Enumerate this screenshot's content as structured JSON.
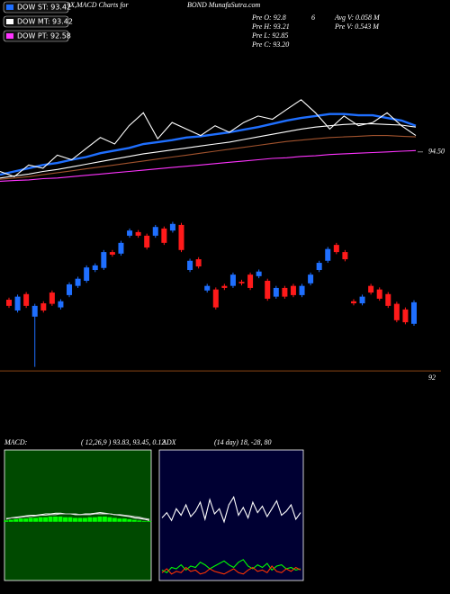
{
  "header": {
    "title": "Price,Volume,EMA,ADX,MACD Charts for",
    "site": "BOND MunafaSutra.com"
  },
  "info": [
    "Pre O: 92.8",
    "Pre H: 93.21",
    "Pre L: 92.85",
    "Pre C: 93.20",
    "6",
    "Avg V: 0.058 M",
    "Pre V: 0.543 M"
  ],
  "chart_data": [
    {
      "type": "line",
      "ylim": [
        94,
        96
      ],
      "yticks": [
        {
          "value": 94.5,
          "label": "94.50"
        }
      ],
      "series": [
        {
          "name": "DOW ST: 93.42",
          "color": "#1f6fff",
          "values": [
            94.15,
            94.2,
            94.25,
            94.3,
            94.33,
            94.38,
            94.42,
            94.48,
            94.52,
            94.56,
            94.62,
            94.65,
            94.68,
            94.72,
            94.74,
            94.77,
            94.8,
            94.84,
            94.88,
            94.93,
            94.98,
            95.02,
            95.05,
            95.08,
            95.08,
            95.06,
            95.06,
            95.02,
            94.98,
            94.9
          ]
        },
        {
          "name": "DOW MT: 93.42",
          "color": "#ffffff",
          "values": [
            94.1,
            94.13,
            94.16,
            94.2,
            94.23,
            94.27,
            94.31,
            94.35,
            94.39,
            94.43,
            94.47,
            94.5,
            94.53,
            94.56,
            94.59,
            94.62,
            94.65,
            94.69,
            94.73,
            94.77,
            94.81,
            94.85,
            94.88,
            94.9,
            94.92,
            94.93,
            94.93,
            94.92,
            94.91,
            94.88
          ]
        },
        {
          "name": "DOW PT: 92.58",
          "color": "#ff33ff",
          "values": [
            94.05,
            94.06,
            94.07,
            94.09,
            94.1,
            94.12,
            94.14,
            94.16,
            94.18,
            94.2,
            94.22,
            94.24,
            94.26,
            94.28,
            94.3,
            94.32,
            94.34,
            94.36,
            94.38,
            94.4,
            94.41,
            94.43,
            94.44,
            94.46,
            94.47,
            94.48,
            94.49,
            94.5,
            94.51,
            94.52
          ]
        },
        {
          "color": "#a0522d",
          "values": [
            94.08,
            94.1,
            94.12,
            94.15,
            94.18,
            94.21,
            94.24,
            94.27,
            94.3,
            94.33,
            94.36,
            94.39,
            94.42,
            94.45,
            94.48,
            94.51,
            94.54,
            94.57,
            94.6,
            94.63,
            94.66,
            94.68,
            94.7,
            94.72,
            94.73,
            94.74,
            94.75,
            94.75,
            94.74,
            94.73
          ]
        },
        {
          "color": "#ffffff",
          "values": [
            94.2,
            94.12,
            94.3,
            94.25,
            94.45,
            94.38,
            94.55,
            94.72,
            94.62,
            94.9,
            95.1,
            94.7,
            94.95,
            94.85,
            94.75,
            94.9,
            94.8,
            94.95,
            95.05,
            95.0,
            95.15,
            95.3,
            95.1,
            94.85,
            95.05,
            94.9,
            94.95,
            95.1,
            94.9,
            94.75
          ]
        }
      ]
    },
    {
      "type": "candlestick",
      "ylim": [
        91.95,
        95.2
      ],
      "yticks": [
        92
      ],
      "up_color": "#1f6fff",
      "down_color": "#ff1a1a",
      "open": [
        93.39,
        93.18,
        93.5,
        93.06,
        93.32,
        93.53,
        93.24,
        93.48,
        93.66,
        93.76,
        93.97,
        94.01,
        94.32,
        94.29,
        94.64,
        94.71,
        94.64,
        94.64,
        94.78,
        94.74,
        94.85,
        93.97,
        94.18,
        93.57,
        93.59,
        93.66,
        93.66,
        93.74,
        93.88,
        93.85,
        93.76,
        93.45,
        93.62,
        93.66,
        93.48,
        93.71,
        93.97,
        94.15,
        94.46,
        94.32,
        93.36,
        93.32,
        93.66,
        93.59,
        93.5,
        93.31,
        93.2,
        92.92
      ],
      "close": [
        93.27,
        93.45,
        93.27,
        93.27,
        93.18,
        93.31,
        93.36,
        93.69,
        93.8,
        94.02,
        94.06,
        94.32,
        94.27,
        94.5,
        94.74,
        94.64,
        94.41,
        94.81,
        94.5,
        94.87,
        94.36,
        94.15,
        94.04,
        93.66,
        93.24,
        93.62,
        93.88,
        93.71,
        93.62,
        93.94,
        93.41,
        93.62,
        93.45,
        93.48,
        93.66,
        93.88,
        94.11,
        94.38,
        94.32,
        94.18,
        93.32,
        93.45,
        93.53,
        93.41,
        93.27,
        92.99,
        92.95,
        93.34
      ],
      "high": [
        93.43,
        93.49,
        93.54,
        93.31,
        93.36,
        93.57,
        93.4,
        93.73,
        93.84,
        94.06,
        94.1,
        94.36,
        94.36,
        94.54,
        94.78,
        94.75,
        94.68,
        94.85,
        94.82,
        94.91,
        94.89,
        94.19,
        94.22,
        93.7,
        93.63,
        93.7,
        93.92,
        93.78,
        93.92,
        93.98,
        93.8,
        93.66,
        93.66,
        93.7,
        93.7,
        93.92,
        94.15,
        94.42,
        94.5,
        94.36,
        93.4,
        93.49,
        93.7,
        93.63,
        93.54,
        93.35,
        93.24,
        93.38
      ],
      "low": [
        93.23,
        93.14,
        93.23,
        92.08,
        93.14,
        93.27,
        93.2,
        93.44,
        93.62,
        93.72,
        93.93,
        93.97,
        94.23,
        94.25,
        94.6,
        94.6,
        94.37,
        94.6,
        94.46,
        94.7,
        94.32,
        93.93,
        94.0,
        93.53,
        93.2,
        93.58,
        93.62,
        93.67,
        93.58,
        93.81,
        93.37,
        93.41,
        93.41,
        93.44,
        93.44,
        93.67,
        93.93,
        94.11,
        94.28,
        94.14,
        93.28,
        93.28,
        93.49,
        93.37,
        93.23,
        92.95,
        92.91,
        92.88
      ]
    },
    {
      "type": "line",
      "title": "MACD:",
      "subtitle": "( 12,26,9 ) 93.83, 93.45, 0.12",
      "ylim": [
        -0.9,
        1.1
      ],
      "series": [
        {
          "color": "#00ff00",
          "type": "bar",
          "values": [
            0.02,
            0.03,
            0.04,
            0.05,
            0.05,
            0.06,
            0.06,
            0.07,
            0.07,
            0.08,
            0.08,
            0.08,
            0.07,
            0.07,
            0.06,
            0.06,
            0.06,
            0.07,
            0.07,
            0.08,
            0.08,
            0.07,
            0.06,
            0.05,
            0.05,
            0.04,
            0.03,
            0.02,
            0.01,
            0.01
          ]
        },
        {
          "color": "#ffffff",
          "values": [
            0.04,
            0.06,
            0.07,
            0.08,
            0.09,
            0.1,
            0.1,
            0.11,
            0.12,
            0.12,
            0.13,
            0.13,
            0.12,
            0.12,
            0.11,
            0.11,
            0.12,
            0.12,
            0.13,
            0.14,
            0.13,
            0.12,
            0.11,
            0.1,
            0.09,
            0.08,
            0.06,
            0.05,
            0.04,
            0.02
          ]
        },
        {
          "color": "#cccccc",
          "values": [
            0.05,
            0.06,
            0.06,
            0.07,
            0.08,
            0.08,
            0.09,
            0.1,
            0.1,
            0.11,
            0.11,
            0.12,
            0.12,
            0.12,
            0.12,
            0.11,
            0.11,
            0.11,
            0.12,
            0.12,
            0.12,
            0.12,
            0.11,
            0.11,
            0.1,
            0.09,
            0.08,
            0.07,
            0.05,
            0.04
          ]
        }
      ]
    },
    {
      "type": "line",
      "title": "ADX",
      "subtitle": "(14 day) 18, -28, 80",
      "ylim": [
        0,
        100
      ],
      "series": [
        {
          "color": "#ffffff",
          "values": [
            48,
            52,
            46,
            55,
            50,
            58,
            49,
            53,
            60,
            47,
            62,
            51,
            55,
            45,
            58,
            64,
            50,
            56,
            48,
            60,
            52,
            57,
            49,
            55,
            61,
            50,
            53,
            58,
            47,
            52
          ]
        },
        {
          "color": "#00ff00",
          "values": [
            8,
            6,
            10,
            9,
            12,
            8,
            11,
            10,
            14,
            12,
            9,
            11,
            13,
            15,
            12,
            10,
            14,
            16,
            11,
            9,
            12,
            10,
            13,
            8,
            11,
            12,
            9,
            10,
            8,
            9
          ]
        },
        {
          "color": "#ff3300",
          "values": [
            6,
            9,
            5,
            7,
            6,
            10,
            7,
            8,
            5,
            6,
            9,
            7,
            6,
            5,
            7,
            9,
            6,
            5,
            8,
            10,
            7,
            8,
            6,
            11,
            7,
            6,
            9,
            7,
            10,
            8
          ]
        }
      ]
    }
  ]
}
